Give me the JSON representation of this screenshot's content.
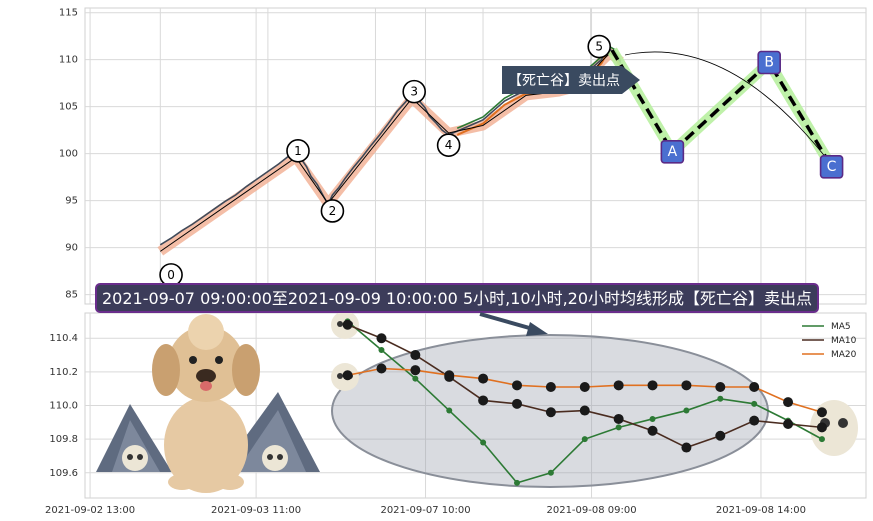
{
  "chart_data": [
    {
      "type": "line",
      "title": "",
      "ylim": [
        84,
        115.5
      ],
      "yticks": [
        85,
        90,
        95,
        100,
        105,
        110,
        115
      ],
      "grid": true,
      "price_series": [
        [
          0.0,
          90.3
        ],
        [
          0.05,
          91.0
        ],
        [
          0.1,
          91.8
        ],
        [
          0.15,
          92.5
        ],
        [
          0.2,
          93.3
        ],
        [
          0.25,
          94.1
        ],
        [
          0.3,
          94.9
        ],
        [
          0.35,
          95.6
        ],
        [
          0.4,
          96.5
        ],
        [
          0.45,
          97.3
        ],
        [
          0.5,
          98.1
        ],
        [
          0.55,
          98.9
        ],
        [
          0.6,
          99.8
        ],
        [
          0.63,
          100.4
        ],
        [
          0.65,
          99.6
        ],
        [
          0.68,
          98.6
        ],
        [
          0.7,
          97.6
        ],
        [
          0.73,
          96.7
        ],
        [
          0.76,
          95.4
        ],
        [
          0.78,
          94.6
        ],
        [
          0.8,
          95.6
        ],
        [
          0.83,
          96.4
        ],
        [
          0.86,
          97.4
        ],
        [
          0.9,
          98.6
        ],
        [
          0.94,
          99.7
        ],
        [
          0.98,
          100.9
        ],
        [
          1.02,
          102.0
        ],
        [
          1.06,
          103.2
        ],
        [
          1.1,
          104.5
        ],
        [
          1.14,
          105.5
        ],
        [
          1.17,
          106.5
        ],
        [
          1.2,
          105.7
        ],
        [
          1.23,
          104.9
        ],
        [
          1.25,
          104.0
        ],
        [
          1.28,
          103.3
        ],
        [
          1.31,
          102.5
        ],
        [
          1.34,
          102.0
        ],
        [
          1.38,
          102.4
        ],
        [
          1.42,
          102.8
        ],
        [
          1.46,
          103.2
        ],
        [
          1.5,
          103.6
        ],
        [
          1.55,
          104.6
        ],
        [
          1.6,
          105.6
        ],
        [
          1.65,
          106.2
        ],
        [
          1.7,
          106.8
        ],
        [
          1.75,
          106.8
        ],
        [
          1.8,
          106.9
        ],
        [
          1.85,
          107.2
        ],
        [
          1.9,
          107.0
        ],
        [
          1.95,
          108.0
        ],
        [
          2.0,
          109.0
        ],
        [
          2.05,
          110.0
        ],
        [
          2.08,
          111.2
        ],
        [
          2.11,
          110.8
        ],
        [
          2.14,
          109.6
        ]
      ],
      "ma_series": [
        [
          0.0,
          89.6
        ],
        [
          0.63,
          99.6
        ],
        [
          0.78,
          94.7
        ],
        [
          1.17,
          105.9
        ],
        [
          1.34,
          102.2
        ],
        [
          1.5,
          103.0
        ],
        [
          1.7,
          106.2
        ],
        [
          1.85,
          106.6
        ],
        [
          1.95,
          107.2
        ],
        [
          2.05,
          109.8
        ],
        [
          2.09,
          110.7
        ],
        [
          2.14,
          109.8
        ]
      ],
      "waves": [
        {
          "label": "0",
          "x": 0.05,
          "y": 87.1
        },
        {
          "label": "1",
          "x": 0.64,
          "y": 100.3
        },
        {
          "label": "2",
          "x": 0.8,
          "y": 93.9
        },
        {
          "label": "3",
          "x": 1.18,
          "y": 106.6
        },
        {
          "label": "4",
          "x": 1.34,
          "y": 100.9
        },
        {
          "label": "5",
          "x": 2.04,
          "y": 111.4
        }
      ],
      "abc_path": [
        {
          "label": "",
          "x": 2.1,
          "y": 111.0
        },
        {
          "label": "A",
          "x": 2.38,
          "y": 100.2
        },
        {
          "label": "B",
          "x": 2.83,
          "y": 109.7
        },
        {
          "label": "C",
          "x": 3.12,
          "y": 98.6
        }
      ],
      "sell_signal": "【死亡谷】卖出点",
      "event_note": "2021-09-07 09:00:00至2021-09-09 10:00:00 5小时,10小时,20小时均线形成【死亡谷】卖出点"
    },
    {
      "type": "line",
      "ylim": [
        109.45,
        110.55
      ],
      "yticks": [
        109.6,
        109.8,
        110.0,
        110.2,
        110.4
      ],
      "grid": true,
      "legend_position": "top-right",
      "x_count": 15,
      "series": [
        {
          "name": "MA5",
          "color": "#2d7a35",
          "values": [
            110.5,
            110.33,
            110.16,
            109.97,
            109.78,
            109.54,
            109.6,
            109.8,
            109.87,
            109.92,
            109.97,
            110.04,
            110.01,
            109.91,
            109.8
          ]
        },
        {
          "name": "MA10",
          "color": "#4a2c20",
          "values": [
            110.48,
            110.4,
            110.3,
            110.17,
            110.03,
            110.01,
            109.96,
            109.97,
            109.92,
            109.85,
            109.75,
            109.82,
            109.91,
            109.89,
            109.87
          ]
        },
        {
          "name": "MA20",
          "color": "#e07020",
          "values": [
            110.18,
            110.22,
            110.21,
            110.18,
            110.16,
            110.12,
            110.11,
            110.11,
            110.12,
            110.12,
            110.12,
            110.11,
            110.11,
            110.02,
            109.96
          ]
        }
      ],
      "xtick_labels": [
        {
          "i": -0.3,
          "label": "2021-09-02 13:00"
        },
        {
          "i": 4.6,
          "label": "2021-09-03 11:00"
        },
        {
          "i": 9.6,
          "label": "2021-09-07 10:00"
        },
        {
          "i": 14.5,
          "label": "2021-09-08 09:00"
        },
        {
          "i": 19.5,
          "label": "2021-09-08 14:00"
        }
      ]
    }
  ]
}
